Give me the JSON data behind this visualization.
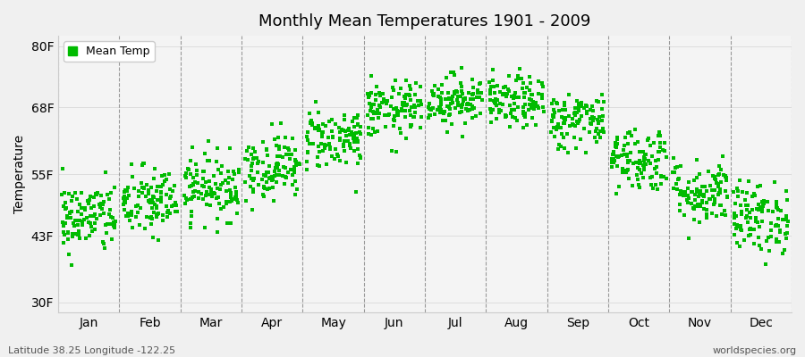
{
  "title": "Monthly Mean Temperatures 1901 - 2009",
  "ylabel": "Temperature",
  "yticks": [
    30,
    43,
    55,
    68,
    80
  ],
  "ytick_labels": [
    "30F",
    "43F",
    "55F",
    "68F",
    "80F"
  ],
  "ylim": [
    28,
    82
  ],
  "months": [
    "Jan",
    "Feb",
    "Mar",
    "Apr",
    "May",
    "Jun",
    "Jul",
    "Aug",
    "Sep",
    "Oct",
    "Nov",
    "Dec"
  ],
  "dot_color": "#00bb00",
  "background_color": "#f0f0f0",
  "plot_bg_color": "#f4f4f4",
  "legend_label": "Mean Temp",
  "subtitle_left": "Latitude 38.25 Longitude -122.25",
  "subtitle_right": "worldspecies.org",
  "n_years": 109,
  "seed": 42,
  "monthly_means": [
    46.5,
    49.5,
    52.5,
    56.5,
    62.0,
    67.5,
    69.5,
    69.0,
    65.5,
    58.0,
    51.5,
    46.5
  ],
  "monthly_stds": [
    3.5,
    3.5,
    3.2,
    3.2,
    3.0,
    2.8,
    2.5,
    2.5,
    2.8,
    3.2,
    3.2,
    3.5
  ]
}
